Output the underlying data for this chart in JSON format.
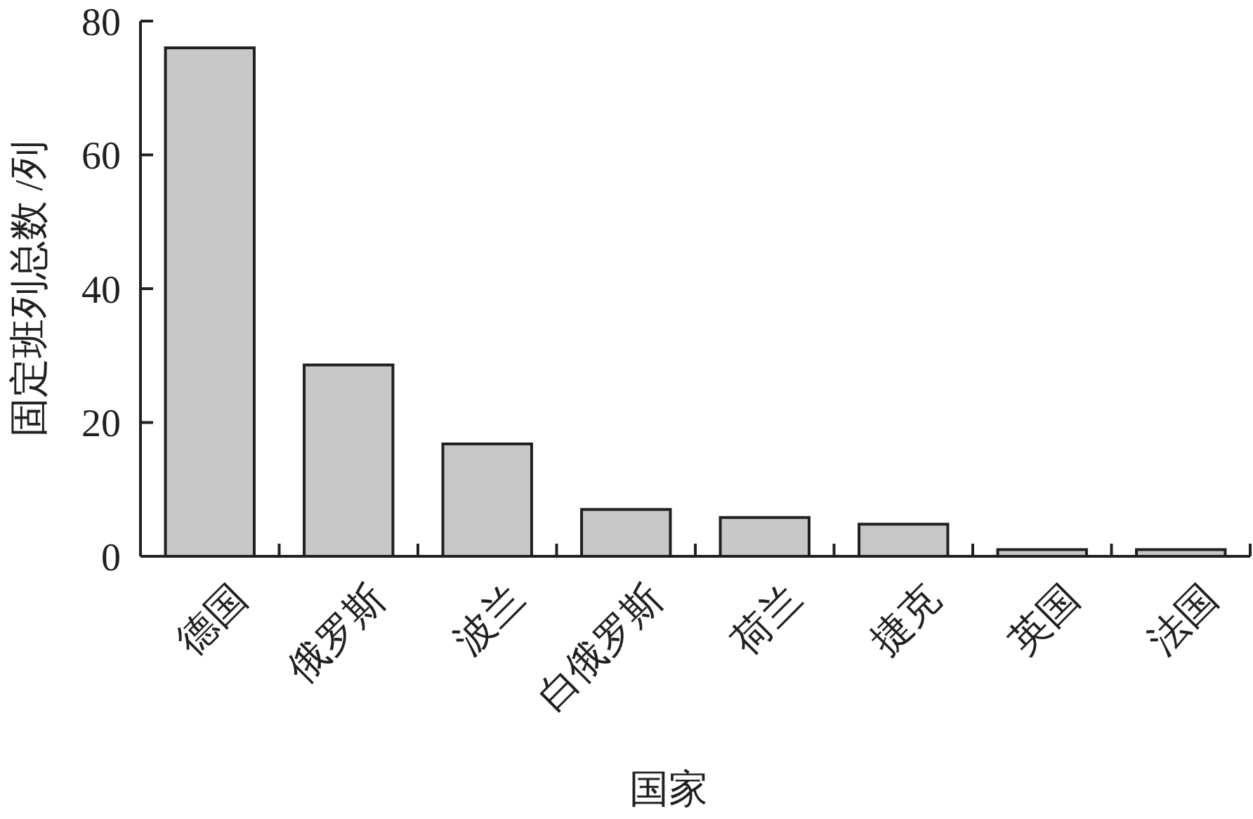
{
  "chart_data": {
    "type": "bar",
    "xlabel": "国家",
    "ylabel": "固定班列总数 /列",
    "categories": [
      "德国",
      "俄罗斯",
      "波兰",
      "白俄罗斯",
      "荷兰",
      "捷克",
      "英国",
      "法国"
    ],
    "values": [
      76,
      28.6,
      16.8,
      7,
      5.8,
      4.8,
      1,
      1
    ],
    "color": "#c8c8c8",
    "ylim": [
      0,
      80
    ],
    "yticks": [
      0,
      20,
      40,
      60,
      80
    ],
    "grid": false
  }
}
